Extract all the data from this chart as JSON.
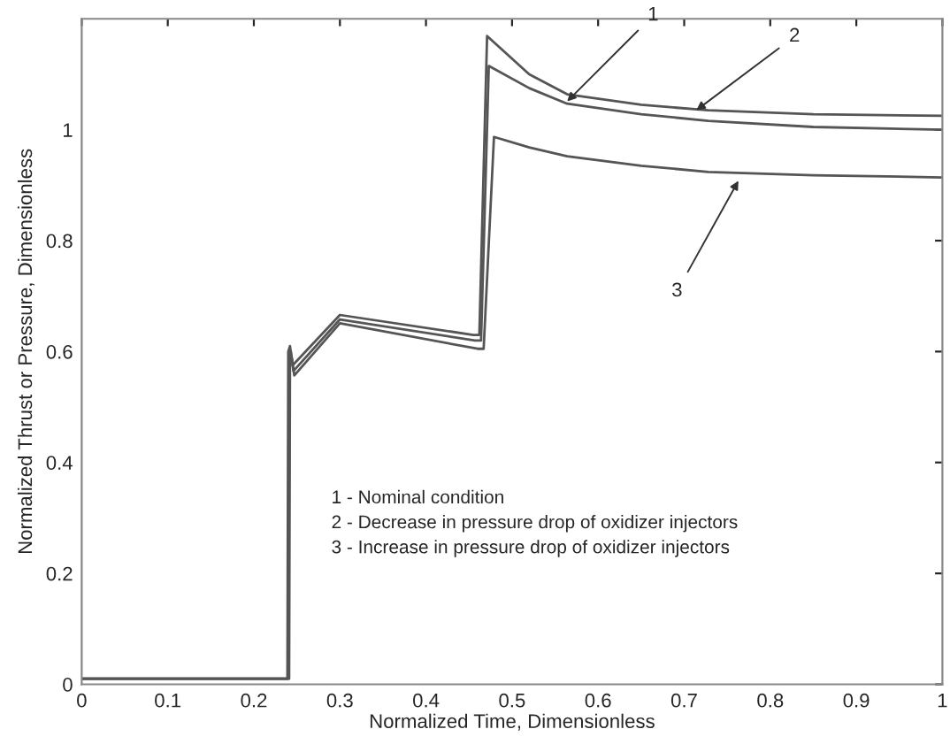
{
  "chart_data": {
    "type": "line",
    "xlabel": "Normalized Time, Dimensionless",
    "ylabel": "Normalized Thrust or Pressure, Dimensionless",
    "xlim": [
      0,
      1
    ],
    "ylim": [
      0,
      1.2
    ],
    "xticks": [
      0,
      0.1,
      0.2,
      0.3,
      0.4,
      0.5,
      0.6,
      0.7,
      0.8,
      0.9,
      1
    ],
    "yticks": [
      0,
      0.2,
      0.4,
      0.6,
      0.8,
      1
    ],
    "grid": false,
    "legend": false,
    "marker": "none",
    "line_style": "solid",
    "series": [
      {
        "color": "#555555",
        "x": [
          0,
          0.239,
          0.24,
          0.242,
          0.245,
          0.3,
          0.455,
          0.462,
          0.471,
          0.52,
          0.564,
          0.65,
          0.728,
          0.85,
          1.0
        ],
        "values": [
          0.01,
          0.01,
          0.6,
          0.61,
          0.575,
          0.666,
          0.63,
          0.63,
          1.169,
          1.1,
          1.064,
          1.045,
          1.035,
          1.028,
          1.025
        ]
      },
      {
        "color": "#555555",
        "x": [
          0,
          0.24,
          0.241,
          0.243,
          0.246,
          0.3,
          0.457,
          0.464,
          0.473,
          0.52,
          0.564,
          0.65,
          0.728,
          0.85,
          1.0
        ],
        "values": [
          0.01,
          0.01,
          0.59,
          0.6,
          0.565,
          0.658,
          0.62,
          0.62,
          1.115,
          1.075,
          1.047,
          1.028,
          1.016,
          1.005,
          1.0
        ]
      },
      {
        "color": "#555555",
        "x": [
          0,
          0.241,
          0.242,
          0.244,
          0.247,
          0.3,
          0.46,
          0.467,
          0.479,
          0.52,
          0.564,
          0.65,
          0.728,
          0.85,
          1.0
        ],
        "values": [
          0.01,
          0.01,
          0.58,
          0.59,
          0.557,
          0.651,
          0.605,
          0.605,
          0.987,
          0.968,
          0.952,
          0.935,
          0.924,
          0.918,
          0.914
        ]
      }
    ],
    "annotations": [
      {
        "text": "1",
        "x": 0.564,
        "y": 1.051
      },
      {
        "text": "2",
        "x": 0.714,
        "y": 1.035
      },
      {
        "text": "3",
        "x": 0.763,
        "y": 0.908
      },
      "1 - Nominal condition",
      "2 - Decrease in pressure drop of oxidizer injectors",
      "3 - Increase in pressure drop of oxidizer injectors"
    ]
  }
}
